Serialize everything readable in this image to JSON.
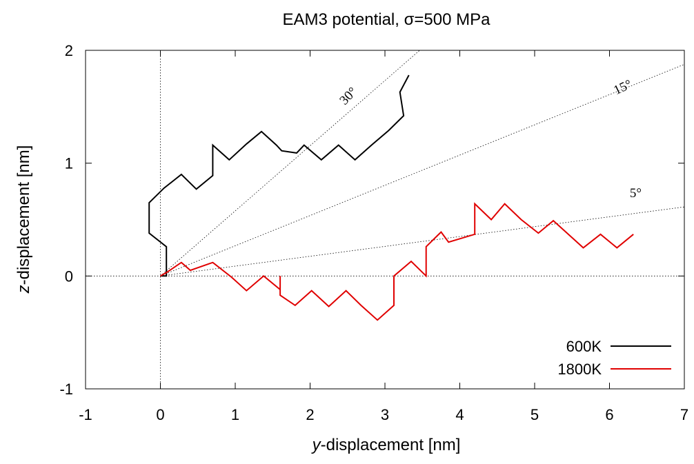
{
  "chart_data": {
    "type": "line",
    "title": "EAM3 potential, σ=500 MPa",
    "xlabel_italic": "y",
    "xlabel_rest": "-displacement [nm]",
    "ylabel_italic": "z",
    "ylabel_rest": "-displacement [nm]",
    "xlim": [
      -1,
      7
    ],
    "ylim": [
      -1,
      2
    ],
    "xticks": [
      "-1",
      "0",
      "1",
      "2",
      "3",
      "4",
      "5",
      "6",
      "7"
    ],
    "yticks": [
      "-1",
      "0",
      "1",
      "2"
    ],
    "grid": false,
    "legend_position": "bottom-right",
    "reference_lines": [
      {
        "label": "30°",
        "angle_deg": 30
      },
      {
        "label": "15°",
        "angle_deg": 15
      },
      {
        "label": "5°",
        "angle_deg": 5
      }
    ],
    "series": [
      {
        "name": "600K",
        "color": "#000000",
        "points": [
          [
            0.0,
            0.0
          ],
          [
            0.08,
            0.0
          ],
          [
            0.08,
            0.14
          ],
          [
            0.08,
            0.26
          ],
          [
            -0.15,
            0.38
          ],
          [
            -0.15,
            0.65
          ],
          [
            0.05,
            0.78
          ],
          [
            0.28,
            0.9
          ],
          [
            0.48,
            0.77
          ],
          [
            0.7,
            0.89
          ],
          [
            0.7,
            1.16
          ],
          [
            0.92,
            1.03
          ],
          [
            1.15,
            1.17
          ],
          [
            1.35,
            1.28
          ],
          [
            1.55,
            1.16
          ],
          [
            1.62,
            1.11
          ],
          [
            1.82,
            1.09
          ],
          [
            1.92,
            1.16
          ],
          [
            2.15,
            1.03
          ],
          [
            2.38,
            1.16
          ],
          [
            2.6,
            1.03
          ],
          [
            2.82,
            1.16
          ],
          [
            3.05,
            1.29
          ],
          [
            3.25,
            1.42
          ],
          [
            3.2,
            1.63
          ],
          [
            3.32,
            1.78
          ]
        ]
      },
      {
        "name": "1800K",
        "color": "#e00000",
        "points": [
          [
            0.0,
            0.0
          ],
          [
            0.08,
            0.03
          ],
          [
            0.28,
            0.12
          ],
          [
            0.4,
            0.05
          ],
          [
            0.7,
            0.12
          ],
          [
            0.95,
            -0.01
          ],
          [
            1.15,
            -0.13
          ],
          [
            1.38,
            0.0
          ],
          [
            1.6,
            -0.12
          ],
          [
            1.6,
            0.0
          ],
          [
            1.6,
            -0.17
          ],
          [
            1.8,
            -0.26
          ],
          [
            2.02,
            -0.13
          ],
          [
            2.25,
            -0.27
          ],
          [
            2.48,
            -0.13
          ],
          [
            2.68,
            -0.26
          ],
          [
            2.9,
            -0.39
          ],
          [
            3.12,
            -0.26
          ],
          [
            3.12,
            0.0
          ],
          [
            3.35,
            0.13
          ],
          [
            3.55,
            0.0
          ],
          [
            3.55,
            0.26
          ],
          [
            3.75,
            0.39
          ],
          [
            3.85,
            0.3
          ],
          [
            4.2,
            0.37
          ],
          [
            4.2,
            0.64
          ],
          [
            4.42,
            0.5
          ],
          [
            4.6,
            0.64
          ],
          [
            4.82,
            0.5
          ],
          [
            5.05,
            0.38
          ],
          [
            5.25,
            0.49
          ],
          [
            5.45,
            0.37
          ],
          [
            5.65,
            0.25
          ],
          [
            5.88,
            0.37
          ],
          [
            6.1,
            0.25
          ],
          [
            6.32,
            0.37
          ]
        ]
      }
    ]
  }
}
